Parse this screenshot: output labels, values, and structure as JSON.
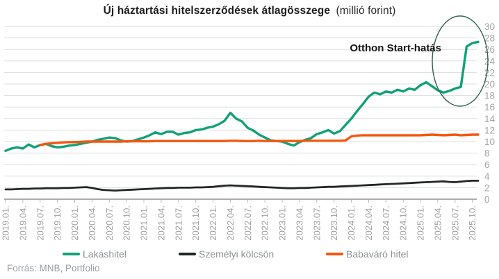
{
  "title": {
    "bold": "Új háztartási hitelszerződések átlagösszege",
    "unit": "(millió forint)"
  },
  "annotation": {
    "text": "Otthon Start-hatás"
  },
  "source": "Forrás: MNB, Portfolio",
  "legend": [
    {
      "label": "Lakáshitel",
      "color": "#12a177"
    },
    {
      "label": "Személyi kölcsön",
      "color": "#212626"
    },
    {
      "label": "Babaváró hitel",
      "color": "#f4570f"
    }
  ],
  "colors": {
    "lakashitel": "#12a177",
    "szemelyi_kolcson": "#212626",
    "babavaro_hitel": "#f4570f",
    "gridline": "#dddddd",
    "axis_line": "#8f8f8f",
    "axis_label": "#a2a2a2",
    "ellipse_stroke": "#2e6351"
  },
  "chart_data": {
    "type": "line",
    "title": "Új háztartási hitelszerződések átlagösszege (millió forint)",
    "x_frequency": "monthly",
    "x_range": [
      "2019.01",
      "2025.11"
    ],
    "x_ticks_every_n_months": 3,
    "x_tick_labels": [
      "2019.01.",
      "2019.04.",
      "2019.07.",
      "2019.10.",
      "2020.01.",
      "2020.04.",
      "2020.07.",
      "2020.10.",
      "2021.01.",
      "2021.04.",
      "2021.07.",
      "2021.10.",
      "2022.01.",
      "2022.04.",
      "2022.07.",
      "2022.10.",
      "2023.01.",
      "2023.04.",
      "2023.07.",
      "2023.10.",
      "2024.01.",
      "2024.04.",
      "2024.07.",
      "2024.10.",
      "2025.01.",
      "2025.04.",
      "2025.07.",
      "2025.10."
    ],
    "ylabel": "millió forint",
    "ylim": [
      0,
      30
    ],
    "ytick_step": 2,
    "y_axis_side": "right",
    "grid": true,
    "legend_position": "bottom",
    "annotation": {
      "text": "Otthon Start-hatás",
      "circled_region": "2025.09–2025.11 spike of Lakáshitel series"
    },
    "series": [
      {
        "name": "Lakáshitel",
        "color": "#12a177",
        "values": [
          8.4,
          8.8,
          9.0,
          8.8,
          9.5,
          9.0,
          9.4,
          9.6,
          9.2,
          9.0,
          9.1,
          9.3,
          9.4,
          9.6,
          9.8,
          10.0,
          10.3,
          10.5,
          10.7,
          10.6,
          10.2,
          10.0,
          10.1,
          10.4,
          10.7,
          11.1,
          11.6,
          11.3,
          11.7,
          11.7,
          11.2,
          11.5,
          11.6,
          12.0,
          12.1,
          12.4,
          12.6,
          13.0,
          13.6,
          15.0,
          14.0,
          13.5,
          12.4,
          11.9,
          11.2,
          10.7,
          10.2,
          10.1,
          10.0,
          9.6,
          9.3,
          9.9,
          10.3,
          10.6,
          11.3,
          11.6,
          12.0,
          11.4,
          11.8,
          12.9,
          14.0,
          15.3,
          16.5,
          17.8,
          18.5,
          18.2,
          18.7,
          18.5,
          19.0,
          18.7,
          19.2,
          19.0,
          19.8,
          20.3,
          19.6,
          18.9,
          18.5,
          18.8,
          19.2,
          19.5,
          26.5,
          27.1,
          27.3
        ]
      },
      {
        "name": "Személyi kölcsön",
        "color": "#212626",
        "values": [
          1.7,
          1.7,
          1.75,
          1.8,
          1.8,
          1.85,
          1.85,
          1.9,
          1.9,
          1.9,
          1.95,
          1.95,
          2.0,
          2.05,
          2.1,
          1.95,
          1.75,
          1.6,
          1.55,
          1.5,
          1.55,
          1.6,
          1.65,
          1.7,
          1.75,
          1.8,
          1.85,
          1.9,
          1.95,
          1.95,
          2.0,
          2.0,
          2.0,
          2.05,
          2.05,
          2.1,
          2.15,
          2.25,
          2.35,
          2.4,
          2.35,
          2.3,
          2.25,
          2.2,
          2.15,
          2.1,
          2.05,
          2.0,
          1.95,
          1.9,
          1.9,
          1.95,
          1.95,
          2.0,
          2.05,
          2.1,
          2.15,
          2.15,
          2.2,
          2.25,
          2.3,
          2.35,
          2.4,
          2.45,
          2.5,
          2.55,
          2.6,
          2.65,
          2.7,
          2.75,
          2.8,
          2.85,
          2.9,
          2.95,
          3.0,
          3.05,
          3.1,
          3.0,
          2.95,
          3.05,
          3.15,
          3.2,
          3.2
        ]
      },
      {
        "name": "Babaváró hitel",
        "color": "#f4570f",
        "values": [
          null,
          null,
          null,
          null,
          null,
          null,
          9.4,
          9.6,
          9.7,
          9.8,
          9.85,
          9.9,
          9.9,
          9.95,
          10.0,
          10.0,
          10.0,
          10.0,
          10.0,
          10.0,
          10.0,
          10.05,
          10.05,
          10.05,
          10.05,
          10.05,
          10.1,
          10.1,
          10.1,
          10.1,
          10.1,
          10.1,
          10.1,
          10.1,
          10.1,
          10.1,
          10.1,
          10.1,
          10.1,
          10.15,
          10.15,
          10.1,
          10.1,
          10.1,
          10.15,
          10.1,
          10.1,
          10.1,
          10.1,
          10.1,
          10.1,
          10.1,
          10.15,
          10.15,
          10.15,
          10.15,
          10.15,
          10.15,
          10.15,
          10.2,
          10.9,
          11.05,
          11.1,
          11.1,
          11.1,
          11.1,
          11.1,
          11.1,
          11.1,
          11.1,
          11.1,
          11.1,
          11.1,
          11.15,
          11.2,
          11.15,
          11.1,
          11.15,
          11.2,
          11.1,
          11.15,
          11.2,
          11.2
        ]
      }
    ]
  }
}
